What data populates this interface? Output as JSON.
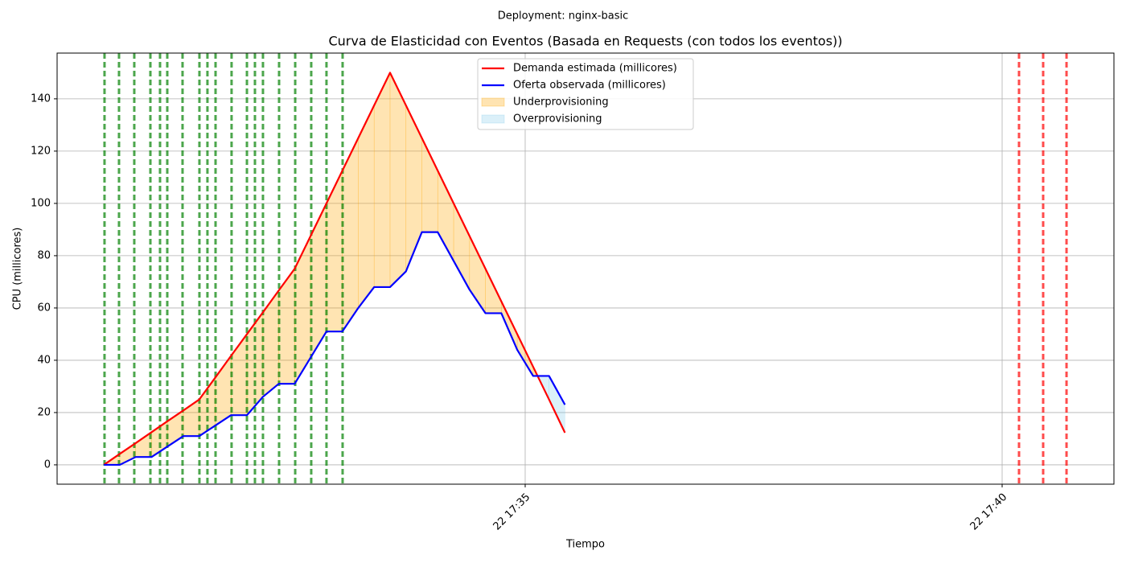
{
  "chart_data": {
    "type": "line",
    "suptitle": "Deployment: nginx-basic",
    "title": "Curva de Elasticidad con Eventos (Basada en Requests (con todos los eventos))",
    "x_label": "Tiempo",
    "y_label": "CPU (millicores)",
    "x": [
      30.5833,
      30.75,
      30.9167,
      31.0833,
      31.25,
      31.4167,
      31.5833,
      31.75,
      31.9167,
      32.0833,
      32.25,
      32.4167,
      32.5833,
      32.75,
      32.9167,
      33.0833,
      33.25,
      33.4167,
      33.5833,
      33.75,
      33.9167,
      34.0833,
      34.25,
      34.4167,
      34.5833,
      34.75,
      34.9167,
      35.0833,
      35.25,
      35.4167
    ],
    "series": [
      {
        "name": "Demanda estimada (millicores)",
        "color": "#ff0000",
        "values": [
          0,
          4.2,
          8.3,
          12.5,
          16.7,
          20.8,
          25,
          33.3,
          41.7,
          50,
          58.3,
          66.7,
          75,
          87.5,
          100,
          112.5,
          125,
          137.5,
          150,
          137.5,
          125,
          112.5,
          100,
          87.5,
          75,
          62.5,
          50,
          37.5,
          25,
          12.3
        ]
      },
      {
        "name": "Oferta observada (millicores)",
        "color": "#0000ff",
        "values": [
          0,
          0,
          3,
          3,
          7,
          11,
          11,
          15,
          19,
          19,
          26,
          31,
          31,
          41,
          51,
          51,
          60,
          68,
          68,
          74,
          89,
          89,
          78,
          67,
          58,
          58,
          44,
          34,
          34,
          23
        ]
      }
    ],
    "fills": [
      {
        "name": "Underprovisioning",
        "color": "#ffa500"
      },
      {
        "name": "Overprovisioning",
        "color": "#87ceeb"
      }
    ],
    "event_lines": [
      {
        "color": "#008000",
        "x": [
          30.59,
          30.742,
          30.902,
          31.071,
          31.172,
          31.248,
          31.408,
          31.585,
          31.669,
          31.754,
          31.922,
          32.083,
          32.167,
          32.251,
          32.42,
          32.589,
          32.757,
          32.917,
          33.086
        ]
      },
      {
        "color": "#ff0000",
        "x": [
          40.177,
          40.43,
          40.675
        ]
      }
    ],
    "xlim": [
      30.093,
      41.172
    ],
    "xticks": [
      {
        "value": 35,
        "label": "22 17:35"
      },
      {
        "value": 40,
        "label": "22 17:40"
      }
    ],
    "ylim": [
      -7.4,
      157.5
    ],
    "yticks": [
      0,
      20,
      40,
      60,
      80,
      100,
      120,
      140
    ],
    "grid": true,
    "legend": "upper center"
  }
}
